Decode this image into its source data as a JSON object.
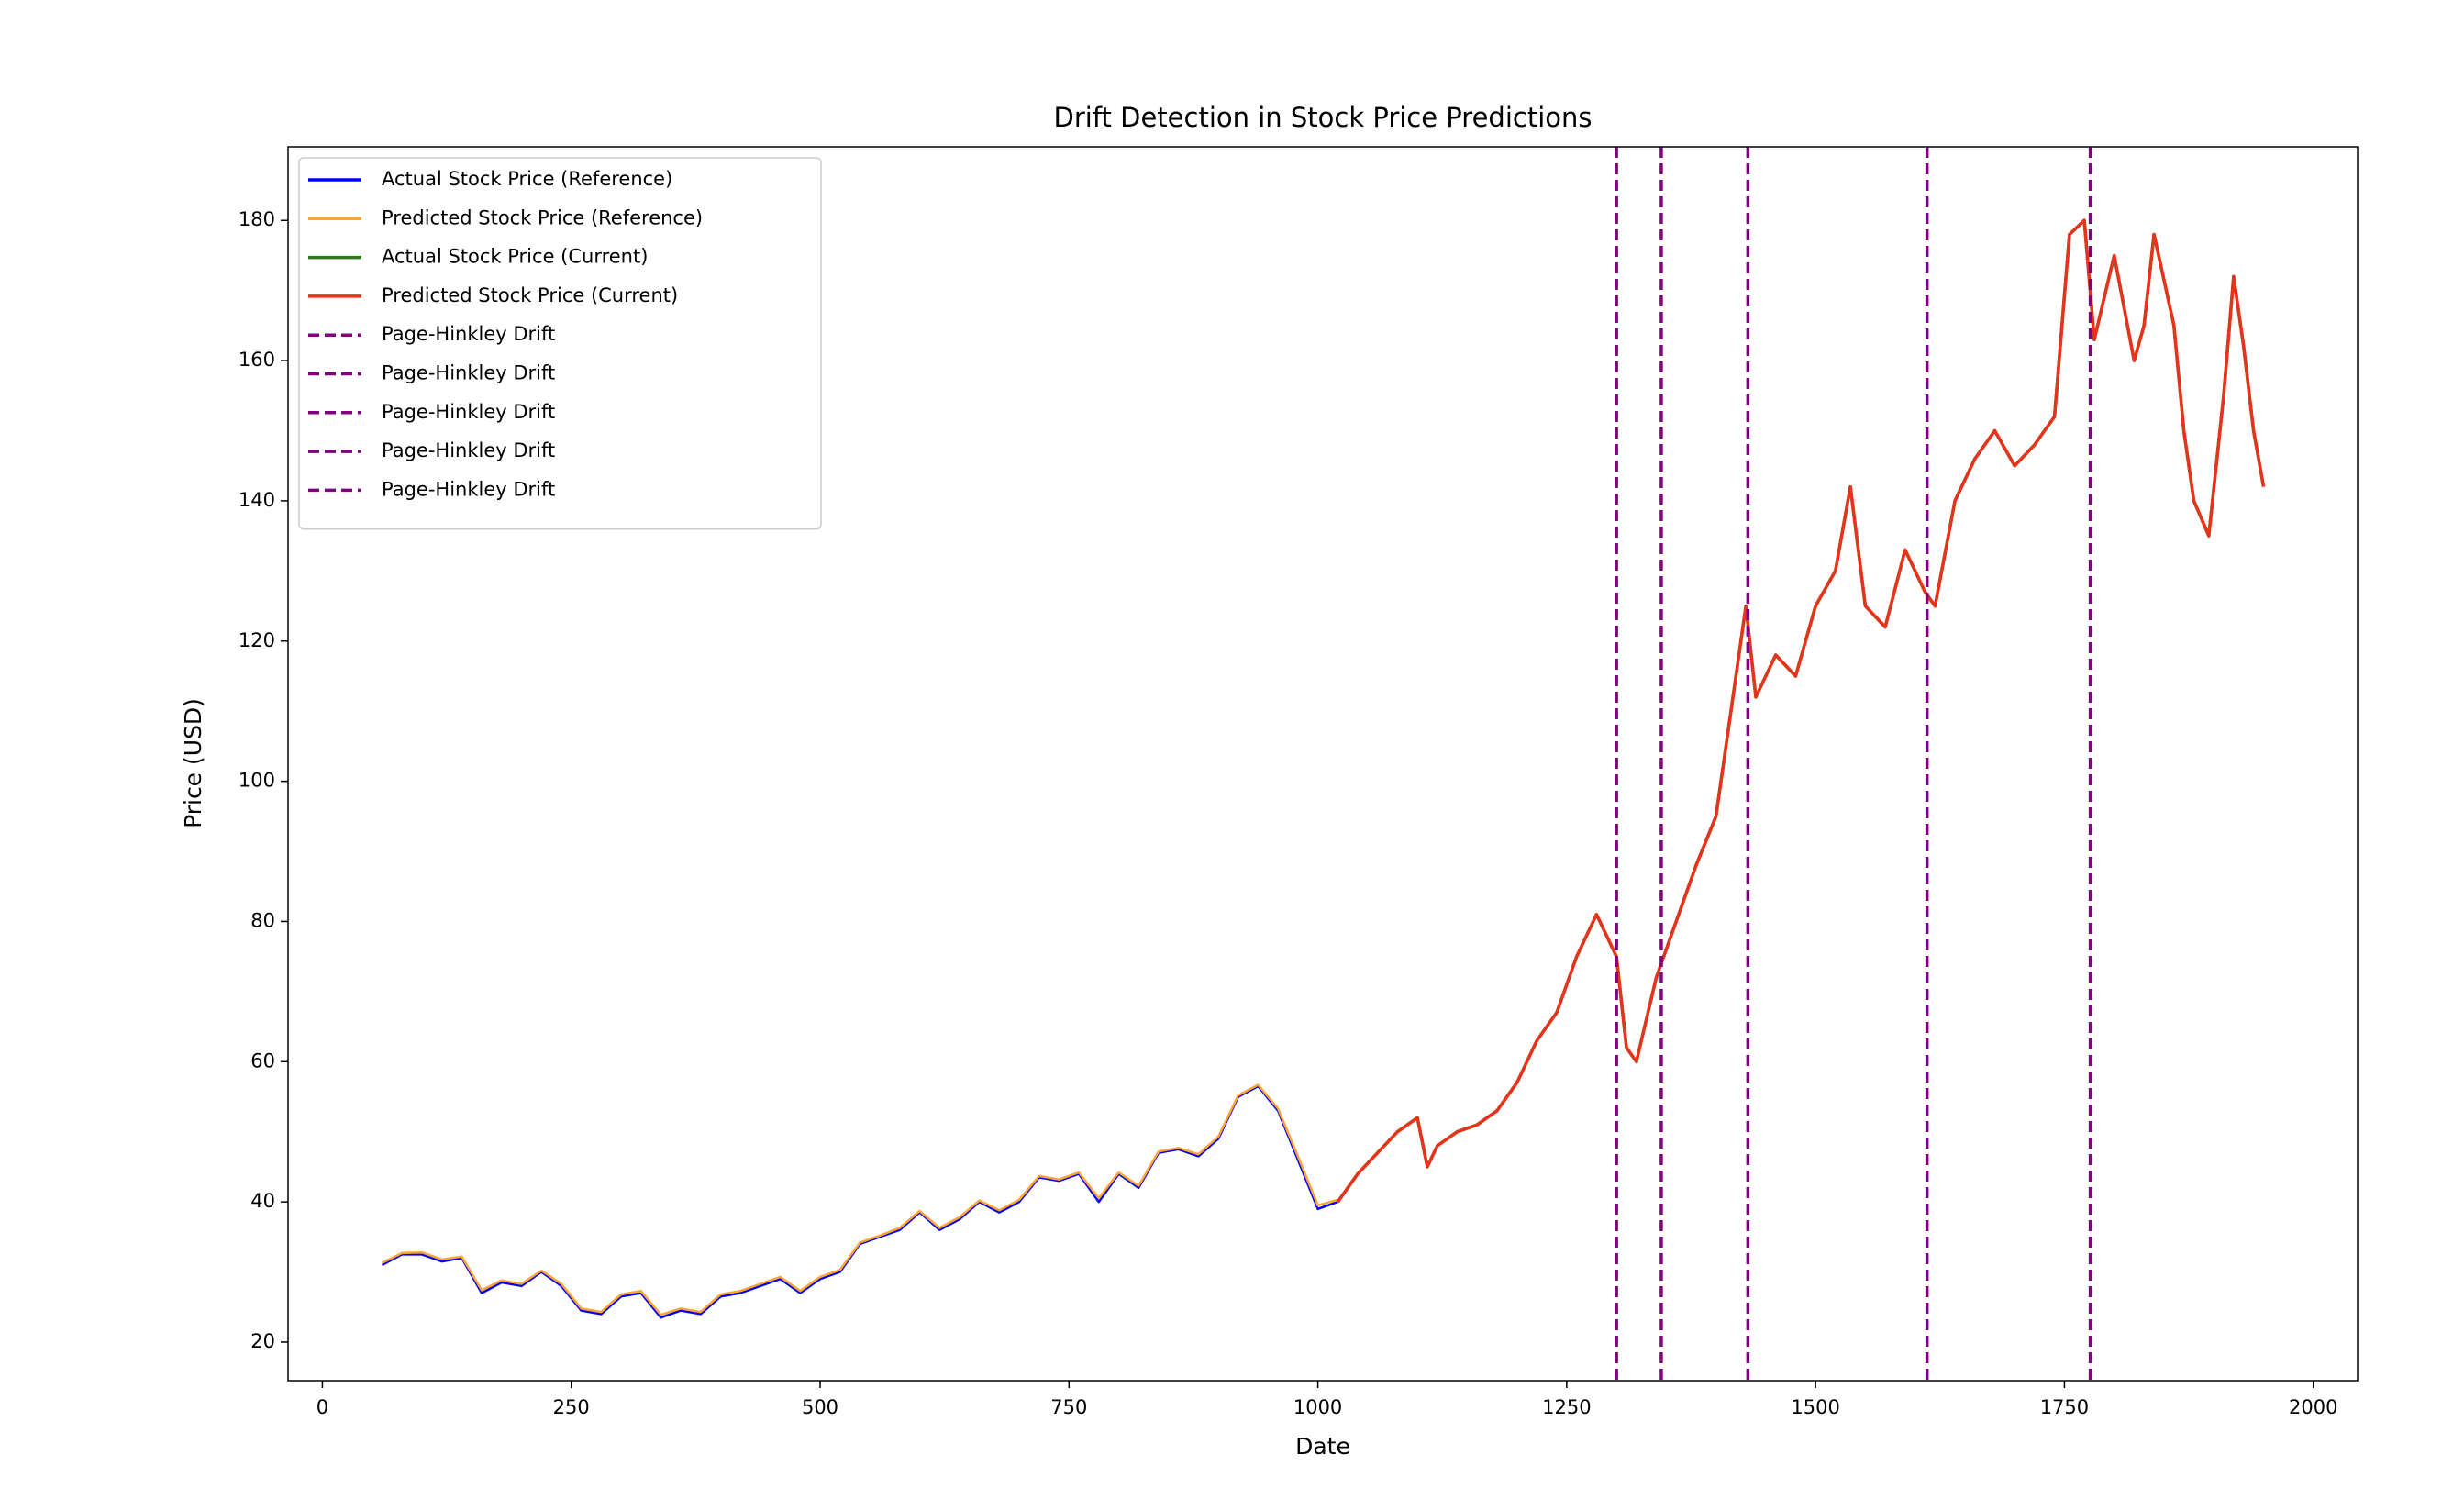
{
  "chart_data": {
    "type": "line",
    "title": "Drift Detection in Stock Price Predictions",
    "x_label": "Date",
    "y_label": "Price (USD)",
    "xlim": [
      -34.5,
      2044.5
    ],
    "ylim": [
      14.5,
      190.5
    ],
    "xticks": [
      0,
      250,
      500,
      750,
      1000,
      1250,
      1500,
      1750,
      2000
    ],
    "yticks": [
      20,
      40,
      60,
      80,
      100,
      120,
      140,
      160,
      180
    ],
    "legend": "upper left",
    "series": [
      {
        "name": "Actual Stock Price (Reference)",
        "color": "#0000ff",
        "x": [
          60,
          80,
          100,
          120,
          140,
          160,
          180,
          200,
          220,
          240,
          260,
          280,
          300,
          320,
          340,
          360,
          380,
          400,
          420,
          440,
          460,
          480,
          500,
          520,
          540,
          560,
          580,
          600,
          620,
          640,
          660,
          680,
          700,
          720,
          740,
          760,
          780,
          800,
          820,
          840,
          860,
          880,
          900,
          920,
          940,
          960,
          980,
          1000,
          1020
        ],
        "values": [
          31,
          32.5,
          32.5,
          31.5,
          32,
          27,
          28.5,
          28,
          30,
          28,
          24.5,
          24,
          26.5,
          27,
          23.5,
          24.5,
          24,
          26.5,
          27,
          28,
          29,
          27,
          29,
          30,
          34,
          35,
          36,
          38.5,
          36,
          37.5,
          40,
          38.5,
          40,
          43.5,
          43,
          44,
          40,
          44,
          42,
          47,
          47.5,
          46.5,
          49,
          55,
          56.5,
          53,
          46,
          39,
          40
        ]
      },
      {
        "name": "Predicted Stock Price (Reference)",
        "color": "#ffa530",
        "x": [
          60,
          80,
          100,
          120,
          140,
          160,
          180,
          200,
          220,
          240,
          260,
          280,
          300,
          320,
          340,
          360,
          380,
          400,
          420,
          440,
          460,
          480,
          500,
          520,
          540,
          560,
          580,
          600,
          620,
          640,
          660,
          680,
          700,
          720,
          740,
          760,
          780,
          800,
          820,
          840,
          860,
          880,
          900,
          920,
          940,
          960,
          980,
          1000,
          1020
        ],
        "values": [
          31.3,
          32.7,
          32.8,
          31.8,
          32.2,
          27.4,
          28.8,
          28.3,
          30.2,
          28.3,
          24.8,
          24.3,
          26.8,
          27.3,
          23.9,
          24.8,
          24.3,
          26.8,
          27.3,
          28.3,
          29.3,
          27.3,
          29.3,
          30.3,
          34.2,
          35.2,
          36.3,
          38.7,
          36.3,
          37.8,
          40.2,
          38.8,
          40.3,
          43.7,
          43.2,
          44.2,
          40.5,
          44.2,
          42.3,
          47.2,
          47.7,
          46.8,
          49.3,
          55.2,
          56.7,
          53.3,
          46.5,
          39.5,
          40.3
        ]
      },
      {
        "name": "Actual Stock Price (Current)",
        "color": "#2c7a1c",
        "x": [
          1020,
          1040,
          1060,
          1080,
          1100,
          1110,
          1120,
          1140,
          1160,
          1180,
          1200,
          1220,
          1240,
          1260,
          1280,
          1300,
          1310,
          1320,
          1340,
          1360,
          1380,
          1400,
          1415,
          1430,
          1440,
          1460,
          1480,
          1500,
          1520,
          1535,
          1550,
          1570,
          1590,
          1610,
          1620,
          1640,
          1660,
          1680,
          1700,
          1720,
          1740,
          1755,
          1770,
          1780,
          1800,
          1820,
          1830,
          1840,
          1860,
          1870,
          1880,
          1895,
          1910,
          1920,
          1930,
          1940,
          1950
        ],
        "values": [
          40,
          44,
          47,
          50,
          52,
          45,
          48,
          50,
          51,
          53,
          57,
          63,
          67,
          75,
          81,
          75,
          62,
          60,
          72,
          80,
          88,
          95,
          110,
          125,
          112,
          118,
          115,
          125,
          130,
          142,
          125,
          122,
          133,
          127,
          125,
          140,
          146,
          150,
          145,
          148,
          152,
          178,
          180,
          163,
          175,
          160,
          165,
          178,
          165,
          150,
          140,
          135,
          155,
          172,
          162,
          150,
          142
        ]
      },
      {
        "name": "Predicted Stock Price (Current)",
        "color": "#e8331c",
        "x": [
          1020,
          1040,
          1060,
          1080,
          1100,
          1110,
          1120,
          1140,
          1160,
          1180,
          1200,
          1220,
          1240,
          1260,
          1280,
          1300,
          1310,
          1320,
          1340,
          1360,
          1380,
          1400,
          1415,
          1430,
          1440,
          1460,
          1480,
          1500,
          1520,
          1535,
          1550,
          1570,
          1590,
          1610,
          1620,
          1640,
          1660,
          1680,
          1700,
          1720,
          1740,
          1755,
          1770,
          1780,
          1800,
          1820,
          1830,
          1840,
          1860,
          1870,
          1880,
          1895,
          1910,
          1920,
          1930,
          1940,
          1950
        ],
        "values": [
          40,
          44,
          47,
          50,
          52,
          45,
          48,
          50,
          51,
          53,
          57,
          63,
          67,
          75,
          81,
          75,
          62,
          60,
          72,
          80,
          88,
          95,
          110,
          125,
          112,
          118,
          115,
          125,
          130,
          142,
          125,
          122,
          133,
          127,
          125,
          140,
          146,
          150,
          145,
          148,
          152,
          178,
          180,
          163,
          175,
          160,
          165,
          178,
          165,
          150,
          140,
          135,
          155,
          172,
          162,
          150,
          142
        ]
      }
    ],
    "drift_lines": [
      {
        "name": "Page-Hinkley Drift",
        "color": "#800080",
        "x": 1300
      },
      {
        "name": "Page-Hinkley Drift",
        "color": "#800080",
        "x": 1345
      },
      {
        "name": "Page-Hinkley Drift",
        "color": "#800080",
        "x": 1432
      },
      {
        "name": "Page-Hinkley Drift",
        "color": "#800080",
        "x": 1612
      },
      {
        "name": "Page-Hinkley Drift",
        "color": "#800080",
        "x": 1776
      }
    ]
  }
}
